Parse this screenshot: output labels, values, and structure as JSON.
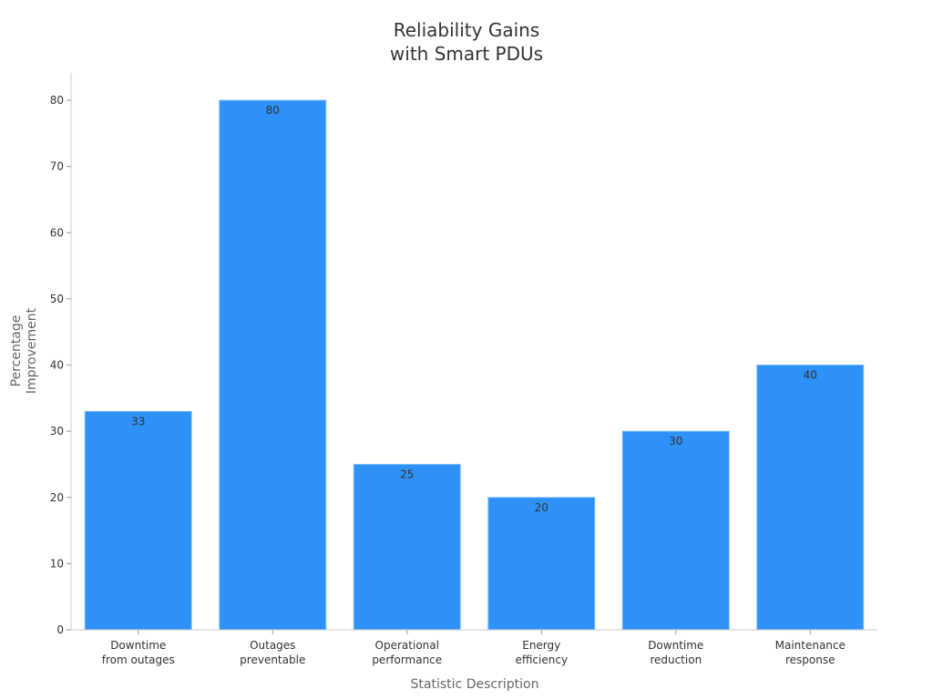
{
  "chart_data": {
    "type": "bar",
    "title": [
      "Reliability Gains",
      "with Smart PDUs"
    ],
    "xlabel": "Statistic Description",
    "ylabel": [
      "Percentage",
      "Improvement"
    ],
    "categories": [
      [
        "Downtime",
        "from outages"
      ],
      [
        "Outages",
        "preventable"
      ],
      [
        "Operational",
        "performance"
      ],
      [
        "Energy",
        "efficiency"
      ],
      [
        "Downtime",
        "reduction"
      ],
      [
        "Maintenance",
        "response"
      ]
    ],
    "values": [
      33,
      80,
      25,
      20,
      30,
      40
    ],
    "ylim": [
      0,
      84
    ],
    "yticks": [
      0,
      10,
      20,
      30,
      40,
      50,
      60,
      70,
      80
    ],
    "grid": false,
    "legend": "none",
    "colors": {
      "bar": "#2e91f7",
      "bar_edge": "#7cc0ff",
      "axis": "#cccccc",
      "text": "#333333"
    }
  }
}
